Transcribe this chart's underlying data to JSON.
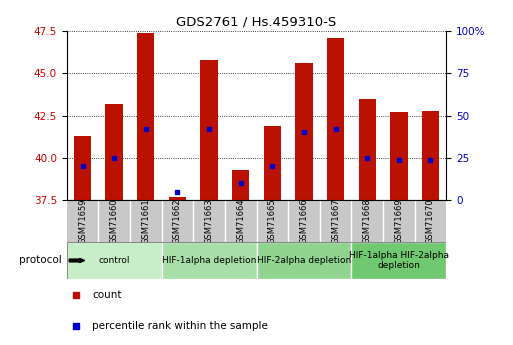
{
  "title": "GDS2761 / Hs.459310-S",
  "samples": [
    "GSM71659",
    "GSM71660",
    "GSM71661",
    "GSM71662",
    "GSM71663",
    "GSM71664",
    "GSM71665",
    "GSM71666",
    "GSM71667",
    "GSM71668",
    "GSM71669",
    "GSM71670"
  ],
  "counts": [
    41.3,
    43.2,
    47.4,
    37.7,
    45.8,
    39.3,
    41.9,
    45.6,
    47.1,
    43.5,
    42.7,
    42.8
  ],
  "percentiles": [
    20,
    25,
    42,
    5,
    42,
    10,
    20,
    40,
    42,
    25,
    24,
    24
  ],
  "ylim_left": [
    37.5,
    47.5
  ],
  "ylim_right": [
    0,
    100
  ],
  "yticks_left": [
    37.5,
    40.0,
    42.5,
    45.0,
    47.5
  ],
  "yticks_right": [
    0,
    25,
    50,
    75,
    100
  ],
  "ytick_labels_right": [
    "0",
    "25",
    "50",
    "75",
    "100%"
  ],
  "bar_color": "#BB1100",
  "dot_color": "#0000CC",
  "bar_bottom": 37.5,
  "protocol_groups": [
    {
      "label": "control",
      "start": 0,
      "end": 3,
      "color": "#C8EEC8"
    },
    {
      "label": "HIF-1alpha depletion",
      "start": 3,
      "end": 6,
      "color": "#A8DEA8"
    },
    {
      "label": "HIF-2alpha depletion",
      "start": 6,
      "end": 9,
      "color": "#90D490"
    },
    {
      "label": "HIF-1alpha HIF-2alpha\ndepletion",
      "start": 9,
      "end": 12,
      "color": "#70C870"
    }
  ],
  "xlabel_color": "#CC0000",
  "ylabel_color_right": "#0000CC",
  "tick_area_color": "#C8C8C8",
  "protocol_label": "protocol"
}
